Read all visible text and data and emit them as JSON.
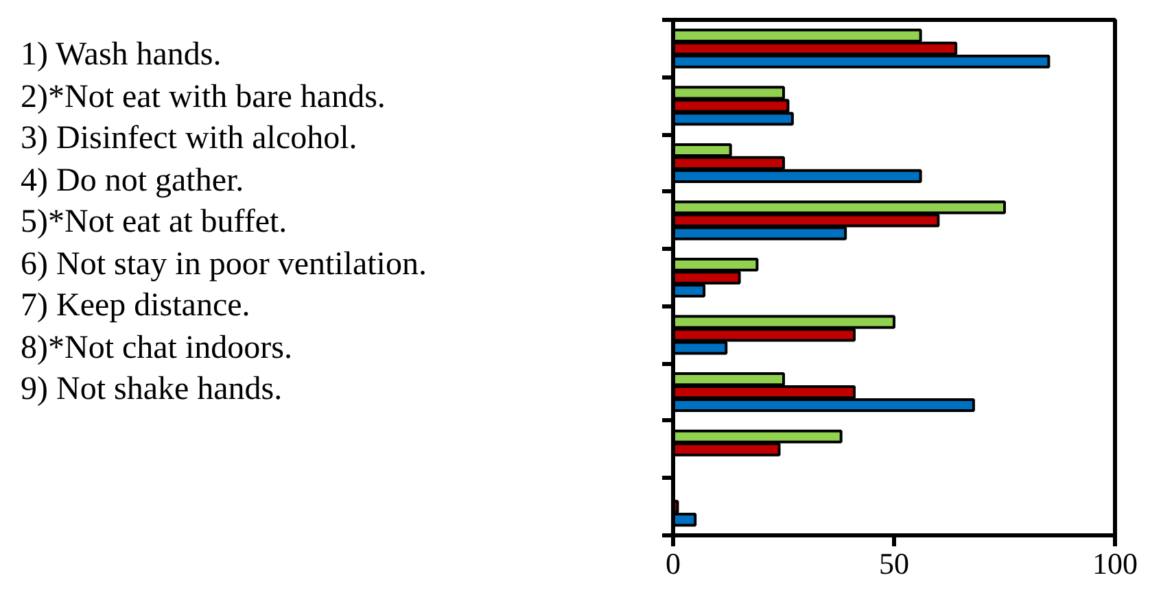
{
  "chart_data": {
    "type": "bar",
    "orientation": "horizontal",
    "categories": [
      null,
      null,
      null,
      null,
      null,
      null,
      null,
      null,
      null
    ],
    "series": [
      {
        "color": "#92d050",
        "values": [
          56,
          25,
          13,
          75,
          19,
          50,
          25,
          38,
          null
        ]
      },
      {
        "color": "#c00000",
        "values": [
          64,
          26,
          25,
          60,
          15,
          41,
          41,
          24,
          1
        ]
      },
      {
        "color": "#0070c0",
        "values": [
          85,
          27,
          56,
          39,
          7,
          12,
          68,
          null,
          5
        ]
      }
    ],
    "xlim": [
      0,
      100
    ],
    "xticks": [
      0,
      50,
      100
    ],
    "tick_labels": "x",
    "grid": false,
    "annotations": [
      "1) Wash hands.",
      "2)*Not eat with bare hands.",
      "3) Disinfect with alcohol.",
      "4) Do not gather.",
      "5)*Not eat at buffet.",
      "6) Not stay in poor ventilation.",
      "7) Keep distance.",
      "8)*Not chat indoors.",
      "9) Not shake hands."
    ]
  }
}
